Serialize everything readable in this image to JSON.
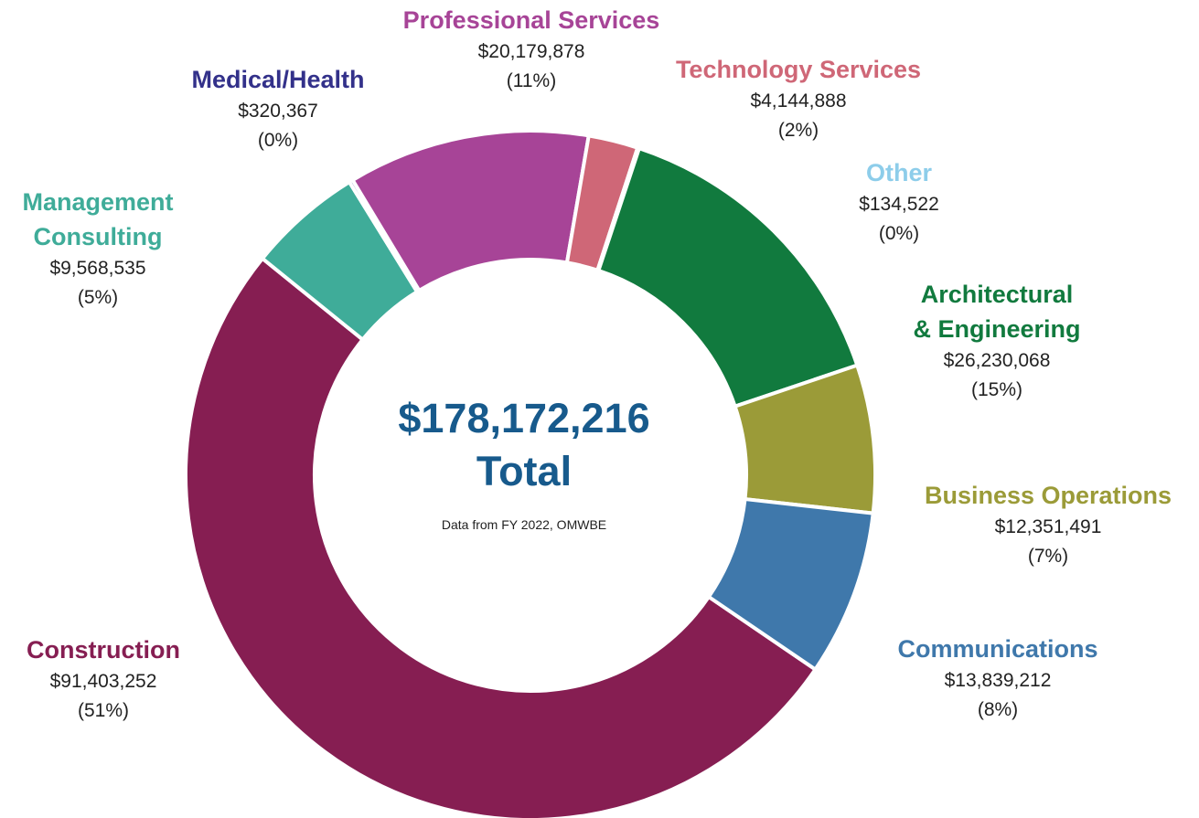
{
  "chart_data": {
    "type": "donut",
    "center_value": 178172216,
    "center_value_label": "$178,172,216",
    "center_caption": "Total",
    "subtitle": "Data from FY 2022, OMWBE",
    "categories": [
      "Construction",
      "Management Consulting",
      "Medical/Health",
      "Professional Services",
      "Technology Services",
      "Other",
      "Architectural & Engineering",
      "Business Operations",
      "Communications"
    ],
    "values": [
      91403252,
      9568535,
      320367,
      20179878,
      4144888,
      134522,
      26230068,
      12351491,
      13839212
    ],
    "value_labels": [
      "$91,403,252",
      "$9,568,535",
      "$320,367",
      "$20,179,878",
      "$4,144,888",
      "$134,522",
      "$26,230,068",
      "$12,351,491",
      "$13,839,212"
    ],
    "percent_labels": [
      "(51%)",
      "(5%)",
      "(0%)",
      "(11%)",
      "(2%)",
      "(0%)",
      "(15%)",
      "(7%)",
      "(8%)"
    ],
    "colors": [
      "#861e52",
      "#3fac99",
      "#33318a",
      "#a74497",
      "#cf6777",
      "#8dcdea",
      "#117a3e",
      "#9b9b38",
      "#3f78ab"
    ]
  }
}
